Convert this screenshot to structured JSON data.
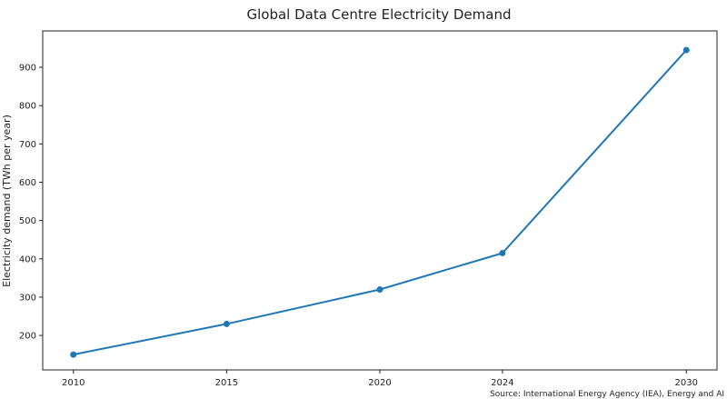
{
  "chart_data": {
    "type": "line",
    "title": "Global Data Centre Electricity Demand",
    "xlabel": "",
    "ylabel": "Electricity demand (TWh per year)",
    "x": [
      2010,
      2015,
      2020,
      2024,
      2030
    ],
    "series": [
      {
        "name": "Global data centre electricity demand",
        "values": [
          150,
          230,
          320,
          415,
          945
        ]
      }
    ],
    "xlim": [
      2009,
      2031
    ],
    "ylim": [
      110,
      995
    ],
    "yticks": [
      200,
      300,
      400,
      500,
      600,
      700,
      800,
      900
    ],
    "xticks": [
      2010,
      2015,
      2020,
      2024,
      2030
    ],
    "grid": false,
    "line_color": "#1f77b4",
    "source": "Source: International Energy Agency (IEA), Energy and AI"
  }
}
